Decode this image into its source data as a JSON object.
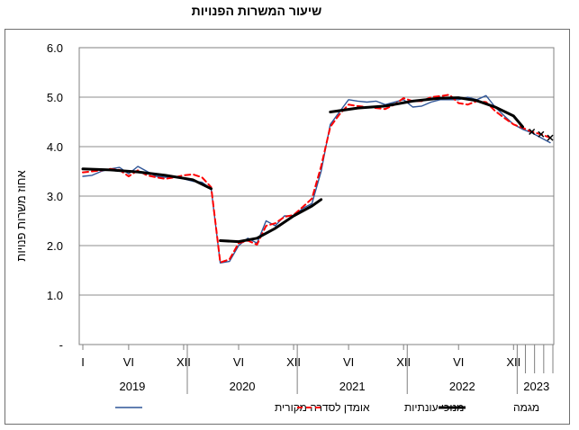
{
  "chart_data": {
    "type": "line",
    "title": "שיעור המשרות הפנויות",
    "ylabel": "אחוז משרות פנויות",
    "xlabel": "",
    "ylim": [
      0,
      6
    ],
    "yticks": [
      "-",
      "1.0",
      "2.0",
      "3.0",
      "4.0",
      "5.0",
      "6.0"
    ],
    "grid": true,
    "legend_position": "bottom",
    "x_month_labels": [
      "I",
      "VI",
      "XII",
      "VI",
      "XII",
      "VI",
      "XII",
      "VI",
      "XII"
    ],
    "years": [
      "2019",
      "2020",
      "2021",
      "2022",
      "2023"
    ],
    "series": [
      {
        "name": "אומדן לסדרה מקורית",
        "color": "#2f5597",
        "style": "solid",
        "values": [
          [
            0,
            3.4
          ],
          [
            1,
            3.42
          ],
          [
            2,
            3.5
          ],
          [
            3,
            3.55
          ],
          [
            4,
            3.58
          ],
          [
            5,
            3.45
          ],
          [
            6,
            3.6
          ],
          [
            7,
            3.5
          ],
          [
            8,
            3.4
          ],
          [
            9,
            3.38
          ],
          [
            10,
            3.4
          ],
          [
            11,
            3.35
          ],
          [
            12,
            3.3
          ],
          [
            13,
            3.28
          ],
          [
            14,
            3.15
          ],
          [
            15,
            1.65
          ],
          [
            16,
            1.68
          ],
          [
            17,
            2.0
          ],
          [
            18,
            2.15
          ],
          [
            19,
            2.05
          ],
          [
            20,
            2.5
          ],
          [
            21,
            2.4
          ],
          [
            22,
            2.6
          ],
          [
            23,
            2.6
          ],
          [
            24,
            2.75
          ],
          [
            25,
            2.85
          ],
          [
            26,
            3.5
          ],
          [
            27,
            4.45
          ],
          [
            28,
            4.7
          ],
          [
            29,
            4.95
          ],
          [
            30,
            4.92
          ],
          [
            31,
            4.9
          ],
          [
            32,
            4.92
          ],
          [
            33,
            4.85
          ],
          [
            34,
            4.9
          ],
          [
            35,
            4.95
          ],
          [
            36,
            4.8
          ],
          [
            37,
            4.82
          ],
          [
            38,
            4.9
          ],
          [
            39,
            4.95
          ],
          [
            40,
            4.95
          ],
          [
            41,
            4.95
          ],
          [
            42,
            5.0
          ],
          [
            43,
            4.95
          ],
          [
            44,
            5.03
          ],
          [
            45,
            4.8
          ],
          [
            46,
            4.62
          ],
          [
            47,
            4.45
          ],
          [
            48,
            4.35
          ],
          [
            49,
            4.28
          ],
          [
            50,
            4.18
          ],
          [
            51,
            4.08
          ]
        ]
      },
      {
        "name": "מנוכי עונתיות",
        "color": "#ff0000",
        "style": "dashed",
        "values": [
          [
            0,
            3.48
          ],
          [
            1,
            3.5
          ],
          [
            2,
            3.52
          ],
          [
            3,
            3.55
          ],
          [
            4,
            3.53
          ],
          [
            5,
            3.4
          ],
          [
            6,
            3.52
          ],
          [
            7,
            3.42
          ],
          [
            8,
            3.38
          ],
          [
            9,
            3.35
          ],
          [
            10,
            3.38
          ],
          [
            11,
            3.42
          ],
          [
            12,
            3.44
          ],
          [
            13,
            3.38
          ],
          [
            14,
            3.18
          ],
          [
            15,
            1.66
          ],
          [
            16,
            1.72
          ],
          [
            17,
            2.05
          ],
          [
            18,
            2.1
          ],
          [
            19,
            2.02
          ],
          [
            20,
            2.4
          ],
          [
            21,
            2.45
          ],
          [
            22,
            2.58
          ],
          [
            23,
            2.62
          ],
          [
            24,
            2.78
          ],
          [
            25,
            2.95
          ],
          [
            26,
            3.6
          ],
          [
            27,
            4.4
          ],
          [
            28,
            4.65
          ],
          [
            29,
            4.85
          ],
          [
            30,
            4.82
          ],
          [
            31,
            4.8
          ],
          [
            32,
            4.78
          ],
          [
            33,
            4.76
          ],
          [
            34,
            4.85
          ],
          [
            35,
            4.98
          ],
          [
            36,
            4.92
          ],
          [
            37,
            4.92
          ],
          [
            38,
            5.0
          ],
          [
            39,
            5.02
          ],
          [
            40,
            5.05
          ],
          [
            41,
            4.88
          ],
          [
            42,
            4.85
          ],
          [
            43,
            4.92
          ],
          [
            44,
            4.9
          ],
          [
            45,
            4.72
          ],
          [
            46,
            4.58
          ],
          [
            47,
            4.45
          ],
          [
            48,
            4.38
          ],
          [
            49,
            4.3
          ],
          [
            50,
            4.25
          ],
          [
            51,
            4.18
          ]
        ]
      },
      {
        "name": "מגמה",
        "color": "#000000",
        "style": "thick",
        "segments": [
          [
            [
              0,
              3.55
            ],
            [
              3,
              3.53
            ],
            [
              6,
              3.49
            ],
            [
              9,
              3.42
            ],
            [
              12,
              3.33
            ],
            [
              14,
              3.15
            ]
          ],
          [
            [
              15,
              2.1
            ],
            [
              17,
              2.08
            ],
            [
              19,
              2.15
            ],
            [
              21,
              2.35
            ],
            [
              23,
              2.6
            ],
            [
              25,
              2.8
            ],
            [
              26,
              2.93
            ]
          ],
          [
            [
              27,
              4.7
            ],
            [
              30,
              4.78
            ],
            [
              33,
              4.82
            ],
            [
              36,
              4.92
            ],
            [
              39,
              4.98
            ],
            [
              41,
              4.99
            ],
            [
              43,
              4.93
            ],
            [
              45,
              4.8
            ],
            [
              47,
              4.62
            ],
            [
              48,
              4.4
            ]
          ]
        ]
      }
    ]
  }
}
